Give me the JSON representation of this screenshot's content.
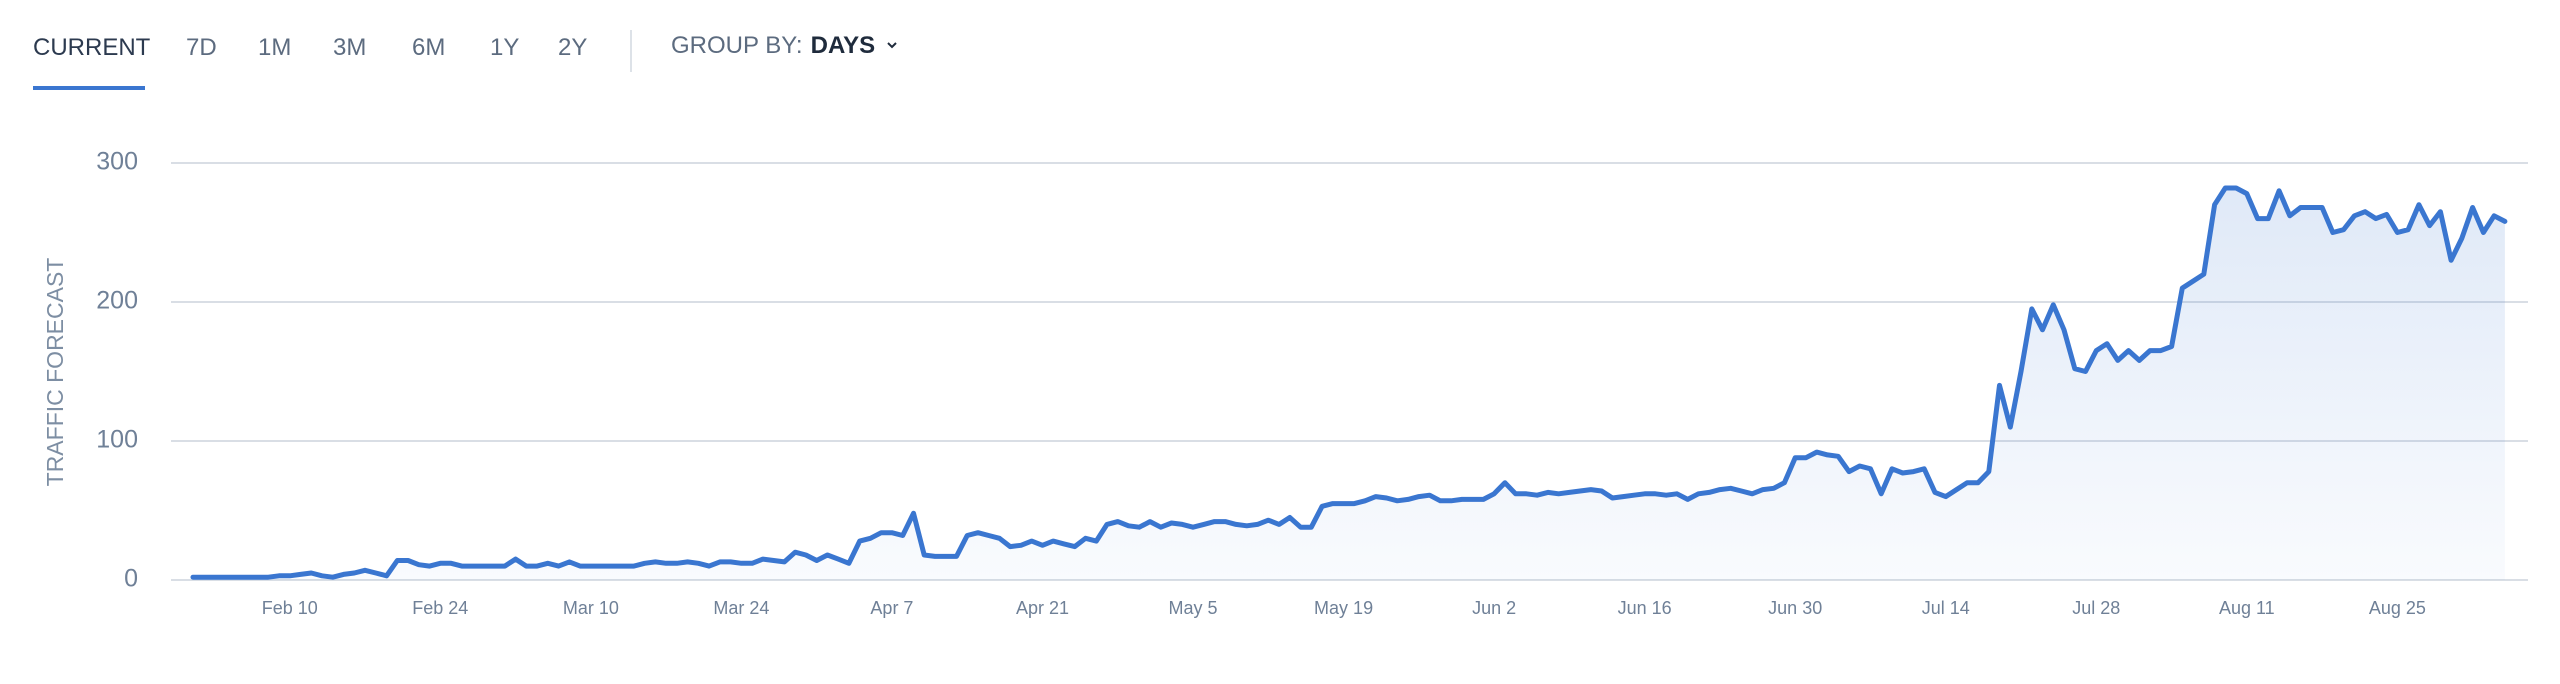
{
  "tabs": [
    "CURRENT",
    "7D",
    "1M",
    "3M",
    "6M",
    "1Y",
    "2Y"
  ],
  "group_by": {
    "label": "GROUP BY:",
    "value": "DAYS"
  },
  "chart_data": {
    "type": "area",
    "y_label": "TRAFFIC FORECAST",
    "color": "#3a76d0",
    "grid": true,
    "ylim": [
      0,
      300
    ],
    "yticks": [
      0,
      100,
      200,
      300
    ],
    "categories": [
      null,
      null,
      null,
      null,
      null,
      null,
      null,
      null,
      null,
      "Feb 10",
      null,
      null,
      null,
      null,
      null,
      null,
      null,
      null,
      null,
      null,
      null,
      null,
      null,
      "Feb 24",
      null,
      null,
      null,
      null,
      null,
      null,
      null,
      null,
      null,
      null,
      null,
      null,
      null,
      "Mar 10",
      null,
      null,
      null,
      null,
      null,
      null,
      null,
      null,
      null,
      null,
      null,
      null,
      null,
      "Mar 24",
      null,
      null,
      null,
      null,
      null,
      null,
      null,
      null,
      null,
      null,
      null,
      null,
      null,
      "Apr 7",
      null,
      null,
      null,
      null,
      null,
      null,
      null,
      null,
      null,
      null,
      null,
      null,
      null,
      "Apr 21",
      null,
      null,
      null,
      null,
      null,
      null,
      null,
      null,
      null,
      null,
      null,
      null,
      null,
      "May 5",
      null,
      null,
      null,
      null,
      null,
      null,
      null,
      null,
      null,
      null,
      null,
      null,
      null,
      "May 19",
      null,
      null,
      null,
      null,
      null,
      null,
      null,
      null,
      null,
      null,
      null,
      null,
      null,
      "Jun 2",
      null,
      null,
      null,
      null,
      null,
      null,
      null,
      null,
      null,
      null,
      null,
      null,
      null,
      "Jun 16",
      null,
      null,
      null,
      null,
      null,
      null,
      null,
      null,
      null,
      null,
      null,
      null,
      null,
      "Jun 30",
      null,
      null,
      null,
      null,
      null,
      null,
      null,
      null,
      null,
      null,
      null,
      null,
      null,
      "Jul 14",
      null,
      null,
      null,
      null,
      null,
      null,
      null,
      null,
      null,
      null,
      null,
      null,
      null,
      "Jul 28",
      null,
      null,
      null,
      null,
      null,
      null,
      null,
      null,
      null,
      null,
      null,
      null,
      null,
      "Aug 11",
      null,
      null,
      null,
      null,
      null,
      null,
      null,
      null,
      null,
      null,
      null,
      null,
      null,
      "Aug 25",
      null,
      null,
      null,
      null,
      null,
      null,
      null,
      null,
      null,
      null
    ],
    "values": [
      2,
      2,
      2,
      2,
      2,
      2,
      2,
      2,
      3,
      3,
      4,
      5,
      3,
      2,
      4,
      5,
      7,
      5,
      3,
      14,
      14,
      11,
      10,
      12,
      12,
      10,
      10,
      10,
      10,
      10,
      15,
      10,
      10,
      12,
      10,
      13,
      10,
      10,
      10,
      10,
      10,
      10,
      12,
      13,
      12,
      12,
      13,
      12,
      10,
      13,
      13,
      12,
      12,
      15,
      14,
      13,
      20,
      18,
      14,
      18,
      15,
      12,
      28,
      30,
      34,
      34,
      32,
      48,
      18,
      17,
      17,
      17,
      32,
      34,
      32,
      30,
      24,
      25,
      28,
      25,
      28,
      26,
      24,
      30,
      28,
      40,
      42,
      39,
      38,
      42,
      38,
      41,
      40,
      38,
      40,
      42,
      42,
      40,
      39,
      40,
      43,
      40,
      45,
      38,
      38,
      53,
      55,
      55,
      55,
      57,
      60,
      59,
      57,
      58,
      60,
      61,
      57,
      57,
      58,
      58,
      58,
      62,
      70,
      62,
      62,
      61,
      63,
      62,
      63,
      64,
      65,
      64,
      59,
      60,
      61,
      62,
      62,
      61,
      62,
      58,
      62,
      63,
      65,
      66,
      64,
      62,
      65,
      66,
      70,
      88,
      88,
      92,
      90,
      89,
      78,
      82,
      80,
      62,
      80,
      77,
      78,
      80,
      63,
      60,
      65,
      70,
      70,
      78,
      140,
      110,
      150,
      195,
      180,
      198,
      180,
      152,
      150,
      165,
      170,
      158,
      165,
      158,
      165,
      165,
      168,
      210,
      215,
      220,
      270,
      282,
      282,
      278,
      260,
      260,
      280,
      262,
      268,
      268,
      268,
      250,
      252,
      262,
      265,
      260,
      263,
      250,
      252,
      270,
      255,
      265,
      230,
      246,
      268,
      250,
      262,
      258
    ]
  }
}
